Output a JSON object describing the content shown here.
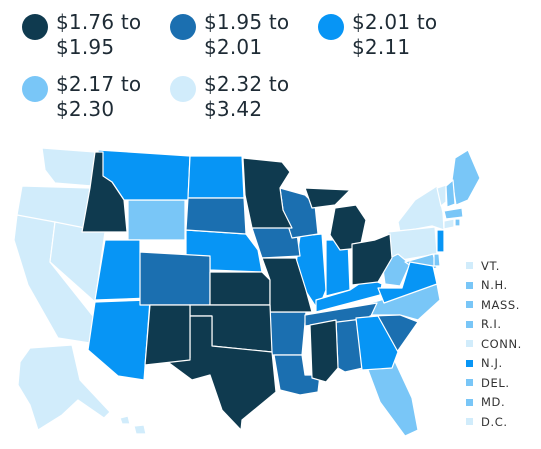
{
  "legend": [
    {
      "label": "$1.76 to $1.95",
      "color": "#0f3a4f"
    },
    {
      "label": "$1.95 to $2.01",
      "color": "#1b6fb0"
    },
    {
      "label": "$2.01 to $2.11",
      "color": "#0795f5"
    },
    {
      "label": "$2.17 to $2.30",
      "color": "#79c6f7"
    },
    {
      "label": "$2.32 to $3.42",
      "color": "#d1ecfb"
    }
  ],
  "small_states": [
    {
      "label": "VT.",
      "color": "#d1ecfb"
    },
    {
      "label": "N.H.",
      "color": "#79c6f7"
    },
    {
      "label": "MASS.",
      "color": "#79c6f7"
    },
    {
      "label": "R.I.",
      "color": "#79c6f7"
    },
    {
      "label": "CONN.",
      "color": "#d1ecfb"
    },
    {
      "label": "N.J.",
      "color": "#0795f5"
    },
    {
      "label": "DEL.",
      "color": "#79c6f7"
    },
    {
      "label": "MD.",
      "color": "#79c6f7"
    },
    {
      "label": "D.C.",
      "color": "#d1ecfb"
    }
  ]
}
